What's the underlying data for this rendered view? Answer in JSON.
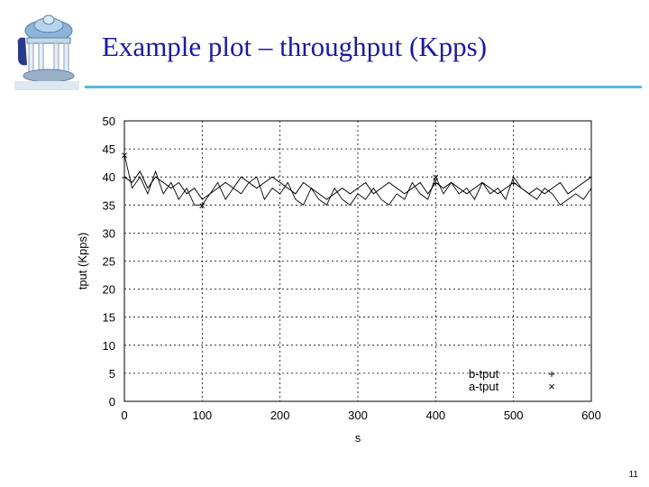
{
  "slide": {
    "title": "Example plot – throughput (Kpps)",
    "slide_number": "11",
    "logo_icon": "old-well-logo-icon",
    "title_color": "#1a1aa0",
    "rule_color": "#5cb8d8"
  },
  "chart_data": {
    "type": "line",
    "xlabel": "s",
    "ylabel": "tput (Kpps)",
    "xlim": [
      0,
      600
    ],
    "ylim": [
      0,
      50
    ],
    "x_ticks": [
      0,
      100,
      200,
      300,
      400,
      500,
      600
    ],
    "y_ticks": [
      0,
      5,
      10,
      15,
      20,
      25,
      30,
      35,
      40,
      45,
      50
    ],
    "grid": true,
    "legend_position": "bottom-right",
    "series": [
      {
        "name": "b-tput",
        "marker": "+",
        "marker_x": [
          0,
          400,
          500
        ],
        "x": [
          0,
          10,
          20,
          30,
          40,
          50,
          60,
          70,
          80,
          90,
          100,
          110,
          120,
          130,
          140,
          150,
          160,
          170,
          180,
          190,
          200,
          210,
          220,
          230,
          240,
          250,
          260,
          270,
          280,
          290,
          300,
          310,
          320,
          330,
          340,
          350,
          360,
          370,
          380,
          390,
          400,
          410,
          420,
          430,
          440,
          450,
          460,
          470,
          480,
          490,
          500,
          510,
          520,
          530,
          540,
          550,
          560,
          570,
          580,
          590,
          600
        ],
        "values": [
          40,
          39,
          41,
          38,
          40,
          39,
          38,
          39,
          37,
          38,
          36,
          37,
          38,
          39,
          38,
          40,
          39,
          38,
          39,
          40,
          39,
          38,
          37,
          39,
          38,
          37,
          36,
          37,
          38,
          37,
          38,
          39,
          37,
          38,
          39,
          38,
          37,
          38,
          39,
          37,
          39,
          38,
          39,
          38,
          37,
          38,
          39,
          38,
          37,
          38,
          39,
          38,
          37,
          38,
          37,
          38,
          39,
          37,
          38,
          39,
          40
        ]
      },
      {
        "name": "a-tput",
        "marker": "×",
        "marker_x": [
          0,
          100,
          400
        ],
        "x": [
          0,
          10,
          20,
          30,
          40,
          50,
          60,
          70,
          80,
          90,
          100,
          110,
          120,
          130,
          140,
          150,
          160,
          170,
          180,
          190,
          200,
          210,
          220,
          230,
          240,
          250,
          260,
          270,
          280,
          290,
          300,
          310,
          320,
          330,
          340,
          350,
          360,
          370,
          380,
          390,
          400,
          410,
          420,
          430,
          440,
          450,
          460,
          470,
          480,
          490,
          500,
          510,
          520,
          530,
          540,
          550,
          560,
          570,
          580,
          590,
          600
        ],
        "values": [
          44,
          38,
          40,
          37,
          41,
          37,
          39,
          36,
          38,
          35,
          35,
          37,
          39,
          36,
          38,
          37,
          39,
          40,
          36,
          38,
          37,
          39,
          36,
          35,
          38,
          36,
          35,
          38,
          36,
          35,
          37,
          36,
          38,
          36,
          35,
          37,
          36,
          39,
          37,
          36,
          40,
          37,
          39,
          37,
          38,
          36,
          39,
          37,
          38,
          36,
          40,
          38,
          37,
          36,
          38,
          37,
          35,
          36,
          37,
          36,
          38
        ]
      }
    ]
  }
}
